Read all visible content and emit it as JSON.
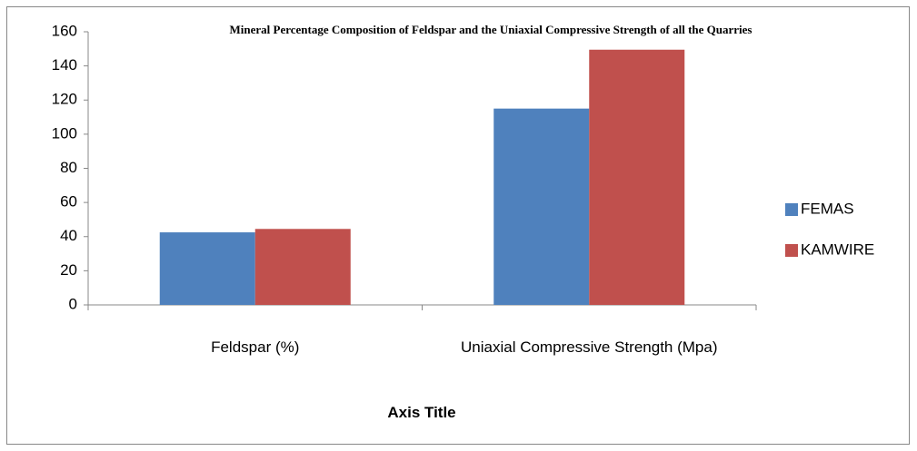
{
  "chart_data": {
    "type": "bar",
    "title": "Mineral Percentage Composition of Feldspar and the Uniaxial Compressive Strength of all the Quarries",
    "x_label": "Axis Title",
    "categories": [
      "Feldspar (%)",
      "Uniaxial Compressive Strength (Mpa)"
    ],
    "series": [
      {
        "name": "FEMAS",
        "color": "#4f81bd",
        "values": [
          42.5,
          115
        ]
      },
      {
        "name": "KAMWIRE",
        "color": "#c0504d",
        "values": [
          44.5,
          149.5
        ]
      }
    ],
    "ylim": [
      0,
      160
    ],
    "yticks": [
      0,
      20,
      40,
      60,
      80,
      100,
      120,
      140,
      160
    ],
    "grid": false,
    "legend": "right"
  }
}
